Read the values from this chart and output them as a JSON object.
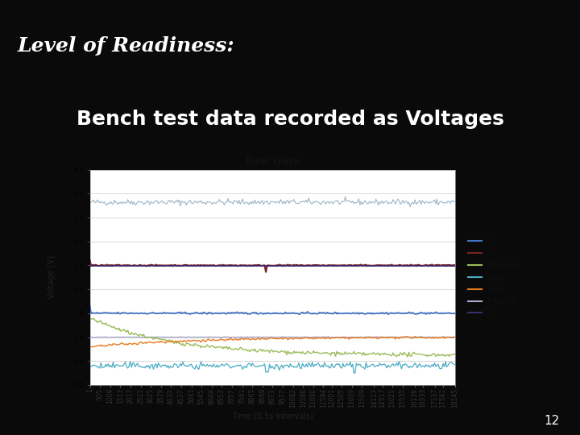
{
  "title": "Level of Readiness:",
  "subtitle": "Bench test data recorded as Voltages",
  "chart_title": "Raw Data",
  "xlabel": "Time (0.5s Intervals)",
  "ylabel": "Voltage [V]",
  "slide_bg": "#0a0a0a",
  "header_bg": "#111111",
  "plot_bg": "#ffffff",
  "ylim": [
    0,
    4.5
  ],
  "n_points": 300,
  "colors": {
    "Z": "#4472C4",
    "Y": "#7B2020",
    "Temp Ext": "#9BBB59",
    "Solar": "#4BACC6",
    "Temp": "#E87B20",
    "Pressure": "#AAAACC",
    "X": "#3D2B6B",
    "top_line": "#9BB5C8"
  },
  "x_ticks": [
    1,
    505,
    1009,
    1513,
    2017,
    2521,
    3025,
    3529,
    4033,
    4537,
    5041,
    5545,
    6049,
    6553,
    7057,
    7561,
    8065,
    8569,
    9073,
    9577,
    10082,
    10586,
    11090,
    11594,
    12001,
    12505,
    13009,
    13509,
    14113,
    14517,
    15025,
    15535,
    16139,
    16533,
    17137,
    17541,
    18145
  ],
  "title_color": "#ffffff",
  "title_fontsize": 18,
  "subtitle_fontsize": 18,
  "page_number": "12",
  "header_line_color": "#2244AA"
}
